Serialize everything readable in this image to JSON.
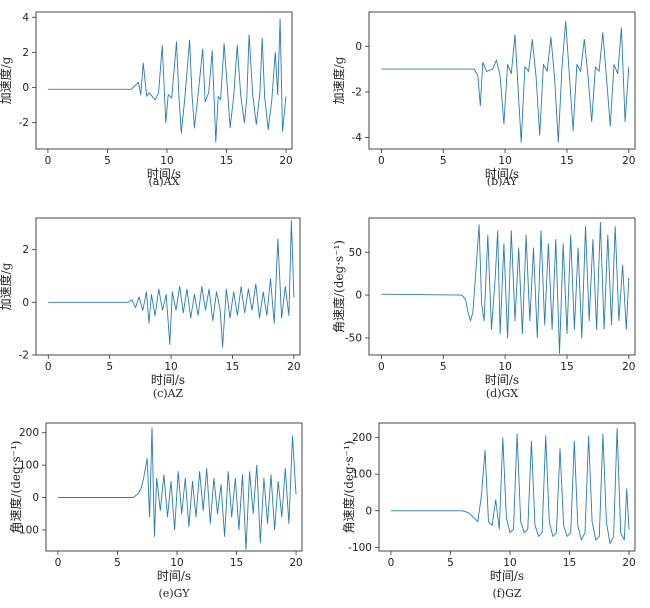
{
  "figure": {
    "background": "#ffffff",
    "line_color": "#2b7bb0",
    "axis_color": "#333333"
  },
  "chart_data": [
    {
      "type": "line",
      "caption": "(a)AX",
      "xlabel": "时间/s",
      "ylabel": "加速度/g",
      "xlim": [
        -1,
        20.5
      ],
      "ylim": [
        -3.5,
        4.3
      ],
      "xticks": [
        0,
        5,
        10,
        15,
        20
      ],
      "yticks": [
        -2,
        0,
        2,
        4
      ],
      "series": [
        {
          "x": [
            0,
            7.0,
            7.3,
            7.6,
            7.8,
            8.0,
            8.3,
            8.5,
            9.0,
            9.3,
            9.6,
            9.9,
            10.1,
            10.4,
            10.8,
            11.0,
            11.2,
            11.5,
            11.9,
            12.1,
            12.3,
            12.6,
            13.0,
            13.2,
            13.5,
            13.8,
            14.1,
            14.3,
            14.5,
            14.8,
            15.1,
            15.3,
            15.6,
            15.9,
            16.2,
            16.5,
            16.7,
            16.9,
            17.2,
            17.5,
            17.8,
            18.0,
            18.2,
            18.5,
            18.8,
            19.1,
            19.3,
            19.5,
            19.7,
            20.0
          ],
          "y": [
            -0.1,
            -0.1,
            0.1,
            0.3,
            -0.4,
            1.4,
            -0.5,
            -0.3,
            -0.7,
            -0.3,
            2.4,
            -2.0,
            -0.4,
            -0.6,
            2.6,
            -0.5,
            -2.6,
            -0.6,
            2.7,
            -0.4,
            -2.3,
            -0.5,
            2.2,
            -0.8,
            -0.3,
            2.1,
            -3.1,
            -0.5,
            -0.7,
            2.5,
            -0.3,
            -2.3,
            -0.5,
            2.4,
            -0.5,
            -2.0,
            -0.6,
            3.0,
            -0.4,
            -2.1,
            -0.3,
            2.8,
            -0.5,
            -2.4,
            -0.7,
            2.0,
            -0.4,
            3.9,
            -2.5,
            -0.5
          ]
        }
      ]
    },
    {
      "type": "line",
      "caption": "(b)AY",
      "xlabel": "时间/s",
      "ylabel": "加速度/g",
      "xlim": [
        -1,
        20.5
      ],
      "ylim": [
        -4.5,
        1.5
      ],
      "xticks": [
        0,
        5,
        10,
        15,
        20
      ],
      "yticks": [
        -4,
        -2,
        0
      ],
      "series": [
        {
          "x": [
            0,
            7.5,
            7.8,
            8.0,
            8.2,
            8.5,
            9.0,
            9.3,
            9.6,
            9.9,
            10.2,
            10.5,
            10.8,
            11.0,
            11.3,
            11.6,
            11.9,
            12.2,
            12.5,
            12.8,
            13.1,
            13.4,
            13.7,
            14.0,
            14.3,
            14.6,
            14.9,
            15.2,
            15.5,
            15.8,
            16.1,
            16.4,
            16.7,
            17.0,
            17.3,
            17.6,
            17.9,
            18.2,
            18.5,
            18.8,
            19.1,
            19.4,
            19.7,
            20.0
          ],
          "y": [
            -1.0,
            -1.0,
            -1.3,
            -2.6,
            -0.7,
            -1.1,
            -1.0,
            -0.6,
            -1.3,
            -3.4,
            -0.8,
            -1.2,
            0.5,
            -1.4,
            -4.2,
            -0.9,
            -1.1,
            0.3,
            -1.3,
            -3.9,
            -0.8,
            -1.1,
            0.4,
            -1.4,
            -4.2,
            -0.9,
            1.1,
            -1.3,
            -3.7,
            -0.8,
            -1.1,
            0.3,
            -1.3,
            -3.3,
            -0.9,
            -1.1,
            0.6,
            -1.4,
            -3.5,
            -0.8,
            -1.2,
            0.8,
            -3.3,
            -0.9
          ]
        }
      ]
    },
    {
      "type": "line",
      "caption": "(c)AZ",
      "xlabel": "时间/s",
      "ylabel": "加速度/g",
      "xlim": [
        -1,
        20.5
      ],
      "ylim": [
        -2.0,
        3.2
      ],
      "xticks": [
        0,
        5,
        10,
        15,
        20
      ],
      "yticks": [
        -2,
        0,
        2
      ],
      "series": [
        {
          "x": [
            0,
            6.5,
            6.8,
            7.1,
            7.4,
            7.7,
            8.0,
            8.2,
            8.4,
            8.7,
            9.0,
            9.3,
            9.6,
            9.9,
            10.1,
            10.4,
            10.7,
            11.0,
            11.3,
            11.6,
            11.9,
            12.2,
            12.5,
            12.8,
            13.1,
            13.4,
            13.7,
            14.0,
            14.2,
            14.5,
            14.8,
            15.1,
            15.4,
            15.7,
            16.0,
            16.3,
            16.6,
            16.9,
            17.2,
            17.5,
            17.8,
            18.1,
            18.4,
            18.7,
            19.0,
            19.3,
            19.6,
            19.8,
            20.0
          ],
          "y": [
            0,
            0,
            0.1,
            -0.2,
            0.2,
            -0.3,
            0.4,
            -0.8,
            0.3,
            -0.5,
            0.5,
            -0.3,
            0.3,
            -1.6,
            0.4,
            -0.3,
            0.6,
            -0.4,
            0.5,
            -0.6,
            0.3,
            -0.5,
            0.6,
            -0.3,
            0.5,
            -0.7,
            0.4,
            -0.3,
            -1.7,
            0.5,
            -0.6,
            0.4,
            -0.5,
            0.6,
            -0.4,
            0.5,
            -0.3,
            0.7,
            -0.6,
            0.4,
            -0.5,
            0.9,
            -0.8,
            2.4,
            -0.6,
            0.6,
            -0.5,
            3.1,
            0.2
          ]
        }
      ]
    },
    {
      "type": "line",
      "caption": "(d)GX",
      "xlabel": "时间/s",
      "ylabel": "角速度/(deg·s⁻¹)",
      "xlim": [
        -1,
        20.5
      ],
      "ylim": [
        -70,
        90
      ],
      "xticks": [
        0,
        5,
        10,
        15,
        20
      ],
      "yticks": [
        -50,
        0,
        50
      ],
      "series": [
        {
          "x": [
            0,
            6.5,
            6.8,
            7.0,
            7.2,
            7.4,
            7.6,
            7.9,
            8.1,
            8.3,
            8.6,
            8.9,
            9.2,
            9.4,
            9.6,
            9.9,
            10.2,
            10.5,
            10.8,
            11.1,
            11.4,
            11.7,
            12.0,
            12.3,
            12.6,
            12.9,
            13.2,
            13.5,
            13.8,
            14.1,
            14.4,
            14.7,
            15.0,
            15.3,
            15.6,
            15.9,
            16.2,
            16.5,
            16.8,
            17.1,
            17.4,
            17.7,
            18.0,
            18.3,
            18.6,
            18.9,
            19.2,
            19.5,
            19.8,
            20.0
          ],
          "y": [
            1,
            0,
            -5,
            -20,
            -30,
            -20,
            20,
            82,
            -10,
            -30,
            70,
            -40,
            20,
            75,
            -45,
            60,
            -50,
            75,
            -30,
            55,
            -45,
            70,
            -30,
            55,
            -50,
            75,
            -35,
            60,
            -40,
            65,
            -68,
            60,
            -45,
            70,
            -40,
            55,
            -50,
            80,
            -30,
            65,
            -40,
            85,
            -40,
            70,
            -35,
            80,
            -30,
            35,
            -40,
            20
          ]
        }
      ]
    },
    {
      "type": "line",
      "caption": "(e)GY",
      "xlabel": "时间/s",
      "ylabel": "角速度/(deg·s⁻¹)",
      "xlim": [
        -1,
        20.5
      ],
      "ylim": [
        -165,
        230
      ],
      "xticks": [
        0,
        5,
        10,
        15,
        20
      ],
      "yticks": [
        -100,
        0,
        100,
        200
      ],
      "series": [
        {
          "x": [
            0,
            6.3,
            6.7,
            7.0,
            7.2,
            7.5,
            7.7,
            7.9,
            8.1,
            8.3,
            8.6,
            8.9,
            9.2,
            9.5,
            9.8,
            10.1,
            10.4,
            10.7,
            11.0,
            11.3,
            11.6,
            11.9,
            12.2,
            12.5,
            12.8,
            13.1,
            13.4,
            13.7,
            14.0,
            14.3,
            14.6,
            14.9,
            15.2,
            15.5,
            15.8,
            16.1,
            16.4,
            16.7,
            17.0,
            17.3,
            17.6,
            17.9,
            18.2,
            18.5,
            18.8,
            19.1,
            19.4,
            19.7,
            20.0
          ],
          "y": [
            0,
            0,
            10,
            30,
            60,
            120,
            -60,
            215,
            -120,
            60,
            -40,
            70,
            -60,
            50,
            -100,
            80,
            -50,
            60,
            -90,
            50,
            -60,
            80,
            -40,
            90,
            -80,
            60,
            -50,
            40,
            -120,
            80,
            -60,
            60,
            -100,
            70,
            -160,
            80,
            -50,
            100,
            -140,
            60,
            -80,
            70,
            -100,
            50,
            -60,
            90,
            -80,
            190,
            10
          ]
        }
      ]
    },
    {
      "type": "line",
      "caption": "(f)GZ",
      "xlabel": "时间/s",
      "ylabel": "角速度/(deg·s⁻¹)",
      "xlim": [
        -1,
        20.5
      ],
      "ylim": [
        -110,
        240
      ],
      "xticks": [
        0,
        5,
        10,
        15,
        20
      ],
      "yticks": [
        -100,
        0,
        100,
        200
      ],
      "series": [
        {
          "x": [
            0,
            6.0,
            6.5,
            7.0,
            7.3,
            7.6,
            7.9,
            8.2,
            8.5,
            8.8,
            9.1,
            9.4,
            9.7,
            10.0,
            10.3,
            10.6,
            10.9,
            11.2,
            11.5,
            11.8,
            12.1,
            12.4,
            12.7,
            13.0,
            13.3,
            13.6,
            13.9,
            14.2,
            14.5,
            14.8,
            15.1,
            15.4,
            15.7,
            16.0,
            16.3,
            16.6,
            16.9,
            17.2,
            17.5,
            17.8,
            18.1,
            18.4,
            18.7,
            19.0,
            19.3,
            19.6,
            19.8,
            20.0
          ],
          "y": [
            0,
            0,
            -5,
            -20,
            -30,
            40,
            165,
            -30,
            -40,
            30,
            -50,
            200,
            -20,
            -60,
            -50,
            210,
            -30,
            -60,
            -50,
            190,
            -40,
            -70,
            -60,
            205,
            -30,
            -70,
            -60,
            170,
            -40,
            -70,
            -60,
            190,
            -40,
            -80,
            -60,
            205,
            -30,
            -80,
            -70,
            210,
            -30,
            -90,
            -70,
            225,
            -60,
            -80,
            60,
            -50
          ]
        }
      ]
    }
  ]
}
